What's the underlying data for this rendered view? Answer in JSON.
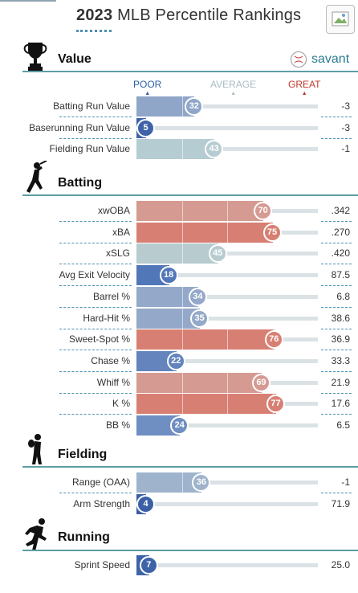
{
  "header": {
    "title_year": "2023",
    "title_rest": "MLB Percentile Rankings"
  },
  "brand": {
    "name": "savant"
  },
  "scale": {
    "poor": "POOR",
    "average": "AVERAGE",
    "great": "GREAT"
  },
  "sections": [
    {
      "key": "value",
      "label": "Value",
      "icon": "trophy-icon",
      "rows": [
        {
          "name": "Batting Run Value",
          "percentile": 32,
          "value": "-3",
          "color": "#8fa6c8"
        },
        {
          "name": "Baserunning Run Value",
          "percentile": 5,
          "value": "-3",
          "color": "#3e63a8"
        },
        {
          "name": "Fielding Run Value",
          "percentile": 43,
          "value": "-1",
          "color": "#b6ccd3"
        }
      ]
    },
    {
      "key": "batting",
      "label": "Batting",
      "icon": "batter-icon",
      "rows": [
        {
          "name": "xwOBA",
          "percentile": 70,
          "value": ".342",
          "color": "#d59a91"
        },
        {
          "name": "xBA",
          "percentile": 75,
          "value": ".270",
          "color": "#d87f73"
        },
        {
          "name": "xSLG",
          "percentile": 45,
          "value": ".420",
          "color": "#b8ccd0"
        },
        {
          "name": "Avg Exit Velocity",
          "percentile": 18,
          "value": "87.5",
          "color": "#5277b8"
        },
        {
          "name": "Barrel %",
          "percentile": 34,
          "value": "6.8",
          "color": "#94a9c9"
        },
        {
          "name": "Hard-Hit %",
          "percentile": 35,
          "value": "38.6",
          "color": "#94a9c9"
        },
        {
          "name": "Sweet-Spot %",
          "percentile": 76,
          "value": "36.9",
          "color": "#d87f73"
        },
        {
          "name": "Chase %",
          "percentile": 22,
          "value": "33.3",
          "color": "#6384bd"
        },
        {
          "name": "Whiff %",
          "percentile": 69,
          "value": "21.9",
          "color": "#d59a91"
        },
        {
          "name": "K %",
          "percentile": 77,
          "value": "17.6",
          "color": "#d87f73"
        },
        {
          "name": "BB %",
          "percentile": 24,
          "value": "6.5",
          "color": "#6f8ec2"
        }
      ]
    },
    {
      "key": "fielding",
      "label": "Fielding",
      "icon": "fielder-icon",
      "rows": [
        {
          "name": "Range (OAA)",
          "percentile": 36,
          "value": "-1",
          "color": "#9fb3cc"
        },
        {
          "name": "Arm Strength",
          "percentile": 4,
          "value": "71.9",
          "color": "#3a5fa6"
        }
      ]
    },
    {
      "key": "running",
      "label": "Running",
      "icon": "runner-icon",
      "rows": [
        {
          "name": "Sprint Speed",
          "percentile": 7,
          "value": "25.0",
          "color": "#3e63a8"
        }
      ]
    }
  ]
}
